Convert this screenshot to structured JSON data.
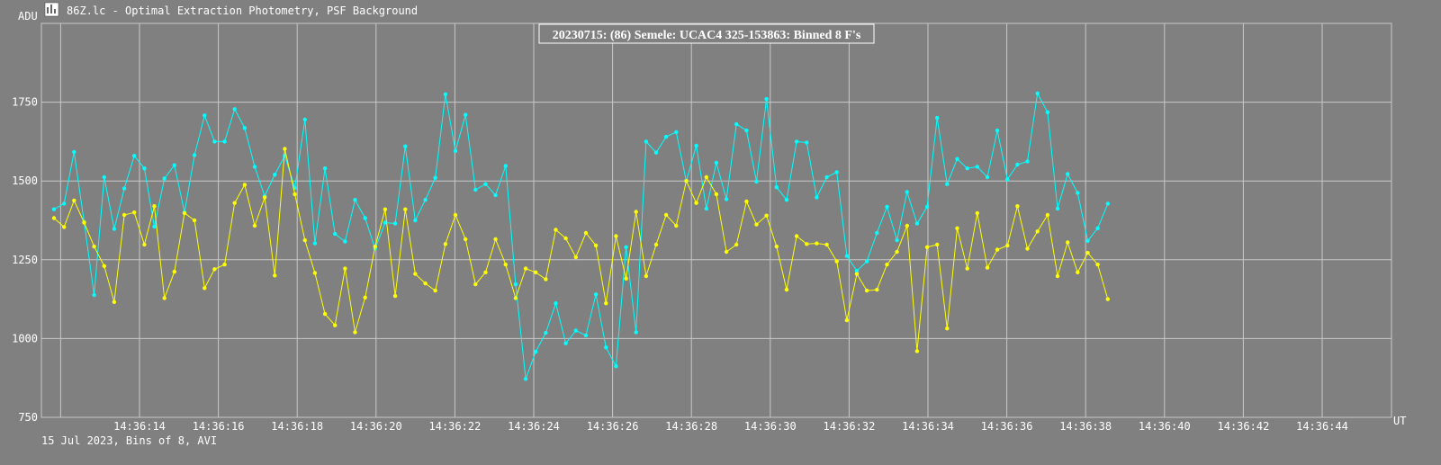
{
  "window": {
    "title": "86Z.lc - Optimal Extraction Photometry, PSF Background",
    "icon": "chart-window-icon"
  },
  "footer": "15 Jul 2023, Bins of 8, AVI",
  "chart_data": {
    "type": "line",
    "title": "20230715: (86) Semele: UCAC4 325-153863: Binned 8 F's",
    "ylabel": "ADU",
    "xlabel": "UT",
    "ylim": [
      750,
      2000
    ],
    "yticks": [
      750,
      1000,
      1250,
      1500,
      1750
    ],
    "xticks": [
      "14:36:14",
      "14:36:16",
      "14:36:18",
      "14:36:20",
      "14:36:22",
      "14:36:24",
      "14:36:26",
      "14:36:28",
      "14:36:30",
      "14:36:32",
      "14:36:34",
      "14:36:36",
      "14:36:38",
      "14:36:40",
      "14:36:42",
      "14:36:44"
    ],
    "grid": true,
    "colors": {
      "series1": "#00ffff",
      "series2": "#ffff00",
      "grid": "#c8c8c8",
      "background": "#808080"
    },
    "series": [
      {
        "values": [
          1410,
          1428,
          1592,
          1370,
          1138,
          1512,
          1348,
          1476,
          1580,
          1540,
          1355,
          1508,
          1550,
          1400,
          1582,
          1708,
          1625,
          1625,
          1728,
          1668,
          1545,
          1452,
          1520,
          1580,
          1478,
          1695,
          1302,
          1540,
          1332,
          1308,
          1440,
          1382,
          1285,
          1368,
          1365,
          1610,
          1375,
          1440,
          1510,
          1775,
          1595,
          1710,
          1472,
          1490,
          1455,
          1548,
          1172,
          872,
          958,
          1018,
          1112,
          985,
          1025,
          1010,
          1140,
          972,
          912,
          1290,
          1020,
          1625,
          1590,
          1640,
          1655,
          1500,
          1612,
          1412,
          1558,
          1442,
          1680,
          1660,
          1498,
          1760,
          1480,
          1440,
          1625,
          1622,
          1448,
          1512,
          1528,
          1262,
          1215,
          1245,
          1335,
          1418,
          1312,
          1465,
          1365,
          1418,
          1700,
          1490,
          1570,
          1540,
          1545,
          1512,
          1660,
          1505,
          1552,
          1562,
          1778,
          1718,
          1412,
          1522,
          1462,
          1310,
          1350,
          1428
        ]
      },
      {
        "values": [
          1382,
          1354,
          1438,
          1368,
          1292,
          1230,
          1116,
          1392,
          1400,
          1298,
          1420,
          1128,
          1212,
          1398,
          1375,
          1160,
          1220,
          1235,
          1430,
          1488,
          1358,
          1448,
          1200,
          1602,
          1458,
          1312,
          1208,
          1078,
          1042,
          1222,
          1020,
          1130,
          1292,
          1410,
          1135,
          1410,
          1205,
          1175,
          1152,
          1300,
          1392,
          1315,
          1172,
          1210,
          1315,
          1235,
          1128,
          1222,
          1210,
          1188,
          1345,
          1318,
          1258,
          1335,
          1295,
          1112,
          1325,
          1190,
          1402,
          1198,
          1298,
          1392,
          1358,
          1500,
          1430,
          1512,
          1458,
          1275,
          1298,
          1435,
          1362,
          1390,
          1292,
          1155,
          1325,
          1300,
          1302,
          1298,
          1245,
          1058,
          1205,
          1152,
          1155,
          1235,
          1275,
          1358,
          960,
          1290,
          1298,
          1032,
          1350,
          1222,
          1398,
          1225,
          1282,
          1295,
          1420,
          1285,
          1340,
          1392,
          1198,
          1305,
          1210,
          1272,
          1235,
          1125
        ]
      }
    ]
  }
}
